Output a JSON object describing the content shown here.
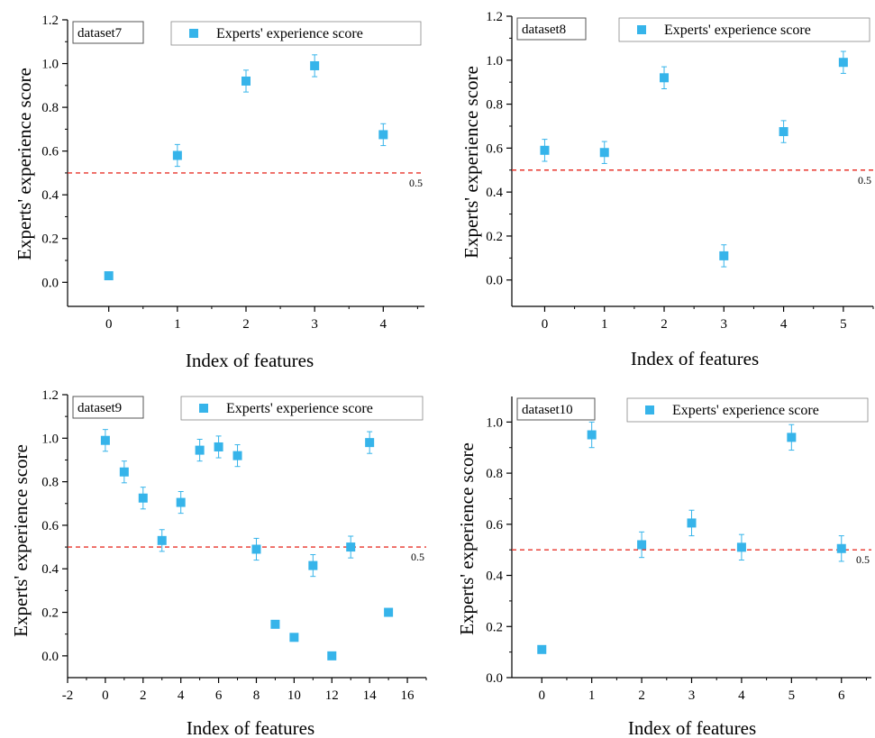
{
  "colors": {
    "marker": "#36b4ea",
    "reference_line": "#e8342b",
    "axis": "#000000"
  },
  "chart_data": [
    {
      "type": "scatter",
      "dataset_label": "dataset7",
      "legend": "Experts' experience  score",
      "xlabel": "Index of features",
      "ylabel": "Experts' experience  score",
      "xlim": [
        -0.6,
        4.6
      ],
      "ylim": [
        -0.11,
        1.2
      ],
      "xticks": [
        0,
        1,
        2,
        3,
        4
      ],
      "yticks": [
        0.0,
        0.2,
        0.4,
        0.6,
        0.8,
        1.0,
        1.2
      ],
      "reference_line": {
        "value": 0.5,
        "label": "0.5"
      },
      "points": [
        {
          "x": 0,
          "y": 0.03,
          "err": 0.0
        },
        {
          "x": 1,
          "y": 0.58,
          "err": 0.05
        },
        {
          "x": 2,
          "y": 0.92,
          "err": 0.05
        },
        {
          "x": 3,
          "y": 0.99,
          "err": 0.05
        },
        {
          "x": 4,
          "y": 0.675,
          "err": 0.05
        }
      ]
    },
    {
      "type": "scatter",
      "dataset_label": "dataset8",
      "legend": "Experts' experience score",
      "xlabel": "Index of features",
      "ylabel": "Experts' experience score",
      "xlim": [
        -0.55,
        5.5
      ],
      "ylim": [
        -0.12,
        1.2
      ],
      "xticks": [
        0,
        1,
        2,
        3,
        4,
        5
      ],
      "yticks": [
        0.0,
        0.2,
        0.4,
        0.6,
        0.8,
        1.0,
        1.2
      ],
      "reference_line": {
        "value": 0.5,
        "label": "0.5"
      },
      "points": [
        {
          "x": 0,
          "y": 0.59,
          "err": 0.05
        },
        {
          "x": 1,
          "y": 0.58,
          "err": 0.05
        },
        {
          "x": 2,
          "y": 0.92,
          "err": 0.05
        },
        {
          "x": 3,
          "y": 0.11,
          "err": 0.05
        },
        {
          "x": 4,
          "y": 0.675,
          "err": 0.05
        },
        {
          "x": 5,
          "y": 0.99,
          "err": 0.05
        }
      ]
    },
    {
      "type": "scatter",
      "dataset_label": "dataset9",
      "legend": "Experts' experience score",
      "xlabel": "Index of features",
      "ylabel": "Experts' experience score",
      "xlim": [
        -2,
        17
      ],
      "ylim": [
        -0.1,
        1.2
      ],
      "xticks": [
        -2,
        0,
        2,
        4,
        6,
        8,
        10,
        12,
        14,
        16
      ],
      "yticks": [
        0.0,
        0.2,
        0.4,
        0.6,
        0.8,
        1.0,
        1.2
      ],
      "reference_line": {
        "value": 0.5,
        "label": "0.5"
      },
      "points": [
        {
          "x": 0,
          "y": 0.99,
          "err": 0.05
        },
        {
          "x": 1,
          "y": 0.845,
          "err": 0.05
        },
        {
          "x": 2,
          "y": 0.725,
          "err": 0.05
        },
        {
          "x": 3,
          "y": 0.53,
          "err": 0.05
        },
        {
          "x": 4,
          "y": 0.705,
          "err": 0.05
        },
        {
          "x": 5,
          "y": 0.945,
          "err": 0.05
        },
        {
          "x": 6,
          "y": 0.96,
          "err": 0.05
        },
        {
          "x": 7,
          "y": 0.92,
          "err": 0.05
        },
        {
          "x": 8,
          "y": 0.49,
          "err": 0.05
        },
        {
          "x": 9,
          "y": 0.145,
          "err": 0.0
        },
        {
          "x": 10,
          "y": 0.085,
          "err": 0.0
        },
        {
          "x": 11,
          "y": 0.415,
          "err": 0.05
        },
        {
          "x": 12,
          "y": 0.0,
          "err": 0.0
        },
        {
          "x": 13,
          "y": 0.5,
          "err": 0.05
        },
        {
          "x": 14,
          "y": 0.98,
          "err": 0.05
        },
        {
          "x": 15,
          "y": 0.2,
          "err": 0.0
        }
      ]
    },
    {
      "type": "scatter",
      "dataset_label": "dataset10",
      "legend": "Experts' experience score",
      "xlabel": "Index of features",
      "ylabel": "Experts' experience score",
      "xlim": [
        -0.6,
        6.6
      ],
      "ylim": [
        0.0,
        1.1
      ],
      "xticks": [
        0,
        1,
        2,
        3,
        4,
        5,
        6
      ],
      "yticks": [
        0.0,
        0.2,
        0.4,
        0.6,
        0.8,
        1.0
      ],
      "reference_line": {
        "value": 0.5,
        "label": "0.5"
      },
      "points": [
        {
          "x": 0,
          "y": 0.11,
          "err": 0.0
        },
        {
          "x": 1,
          "y": 0.95,
          "err": 0.05
        },
        {
          "x": 2,
          "y": 0.52,
          "err": 0.05
        },
        {
          "x": 3,
          "y": 0.605,
          "err": 0.05
        },
        {
          "x": 4,
          "y": 0.51,
          "err": 0.05
        },
        {
          "x": 5,
          "y": 0.94,
          "err": 0.05
        },
        {
          "x": 6,
          "y": 0.505,
          "err": 0.05
        }
      ]
    }
  ]
}
